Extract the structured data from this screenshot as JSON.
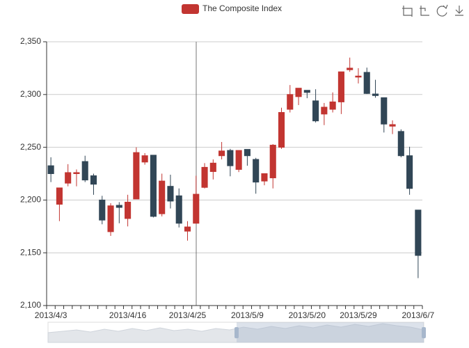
{
  "chart_data": {
    "type": "candlestick",
    "categories": [
      "2013/4/3",
      null,
      null,
      null,
      null,
      null,
      null,
      null,
      null,
      "2013/4/16",
      null,
      null,
      null,
      null,
      null,
      null,
      "2013/4/25",
      null,
      null,
      null,
      null,
      null,
      null,
      "2013/5/9",
      null,
      null,
      null,
      null,
      null,
      null,
      "2013/5/20",
      null,
      null,
      null,
      null,
      null,
      "2013/5/29",
      null,
      null,
      null,
      null,
      null,
      null,
      "2013/6/7"
    ],
    "series": [
      {
        "name": "The Composite Index",
        "color": "#c23531",
        "down_color": "#314656",
        "values": [
          [
            2232.5,
            2225,
            2217,
            2240.5
          ],
          [
            2196,
            2211.5,
            2180,
            2211.5
          ],
          [
            2216,
            2226,
            2213,
            2234
          ],
          [
            2225,
            2226,
            2213,
            2229
          ],
          [
            2236.5,
            2219,
            2217,
            2242
          ],
          [
            2223,
            2215,
            2205,
            2225
          ],
          [
            2200,
            2181,
            2177,
            2204
          ],
          [
            2170,
            2194.5,
            2166,
            2197
          ],
          [
            2195,
            2193,
            2178,
            2198
          ],
          [
            2182.5,
            2198,
            2175,
            2205
          ],
          [
            2201,
            2245,
            2201,
            2250
          ],
          [
            2236,
            2242,
            2233.5,
            2244.5
          ],
          [
            2242.5,
            2184.5,
            2183.5,
            2242.5
          ],
          [
            2187,
            2218,
            2184.5,
            2225
          ],
          [
            2213,
            2199,
            2192,
            2224
          ],
          [
            2204,
            2178,
            2174,
            2211
          ],
          [
            2170.5,
            2174.5,
            2161.5,
            2180
          ],
          [
            2178,
            2205.5,
            2178,
            2223
          ],
          [
            2212,
            2231,
            2211,
            2235
          ],
          [
            2227,
            2235,
            2219.5,
            2238.5
          ],
          [
            2242,
            2246.5,
            2238.5,
            2255
          ],
          [
            2247,
            2232.5,
            2222.5,
            2248.5
          ],
          [
            2229,
            2247,
            2226.5,
            2247
          ],
          [
            2248,
            2242,
            2232.5,
            2248
          ],
          [
            2238.5,
            2217,
            2206,
            2240
          ],
          [
            2218,
            2225,
            2214,
            2225
          ],
          [
            2221,
            2252,
            2211,
            2253
          ],
          [
            2250,
            2283,
            2248.5,
            2287.5
          ],
          [
            2286,
            2300,
            2283,
            2309
          ],
          [
            2298,
            2306,
            2290,
            2306
          ],
          [
            2304,
            2302,
            2296.5,
            2304
          ],
          [
            2294,
            2275,
            2273.5,
            2305
          ],
          [
            2281.5,
            2288,
            2271,
            2292
          ],
          [
            2286,
            2293,
            2283,
            2302
          ],
          [
            2293,
            2321.5,
            2281.5,
            2321.5
          ],
          [
            2323.5,
            2325,
            2321.5,
            2335
          ],
          [
            2316.5,
            2317.5,
            2310.5,
            2325
          ],
          [
            2321,
            2301,
            2300.5,
            2325.5
          ],
          [
            2300.5,
            2299,
            2297,
            2314
          ],
          [
            2297,
            2272,
            2264,
            2297
          ],
          [
            2270,
            2271.5,
            2262.5,
            2275.5
          ],
          [
            2265,
            2242,
            2240.5,
            2267
          ],
          [
            2242,
            2211,
            2205,
            2250.5
          ],
          [
            2190.5,
            2147.5,
            2126,
            2190.5
          ]
        ]
      }
    ],
    "ylim": [
      2100,
      2350
    ],
    "yticks": [
      {
        "value": 2100,
        "label": "2,100"
      },
      {
        "value": 2150,
        "label": "2,150"
      },
      {
        "value": 2200,
        "label": "2,200"
      },
      {
        "value": 2250,
        "label": "2,250"
      },
      {
        "value": 2300,
        "label": "2,300"
      },
      {
        "value": 2350,
        "label": "2,350"
      }
    ],
    "grid": true
  }
}
